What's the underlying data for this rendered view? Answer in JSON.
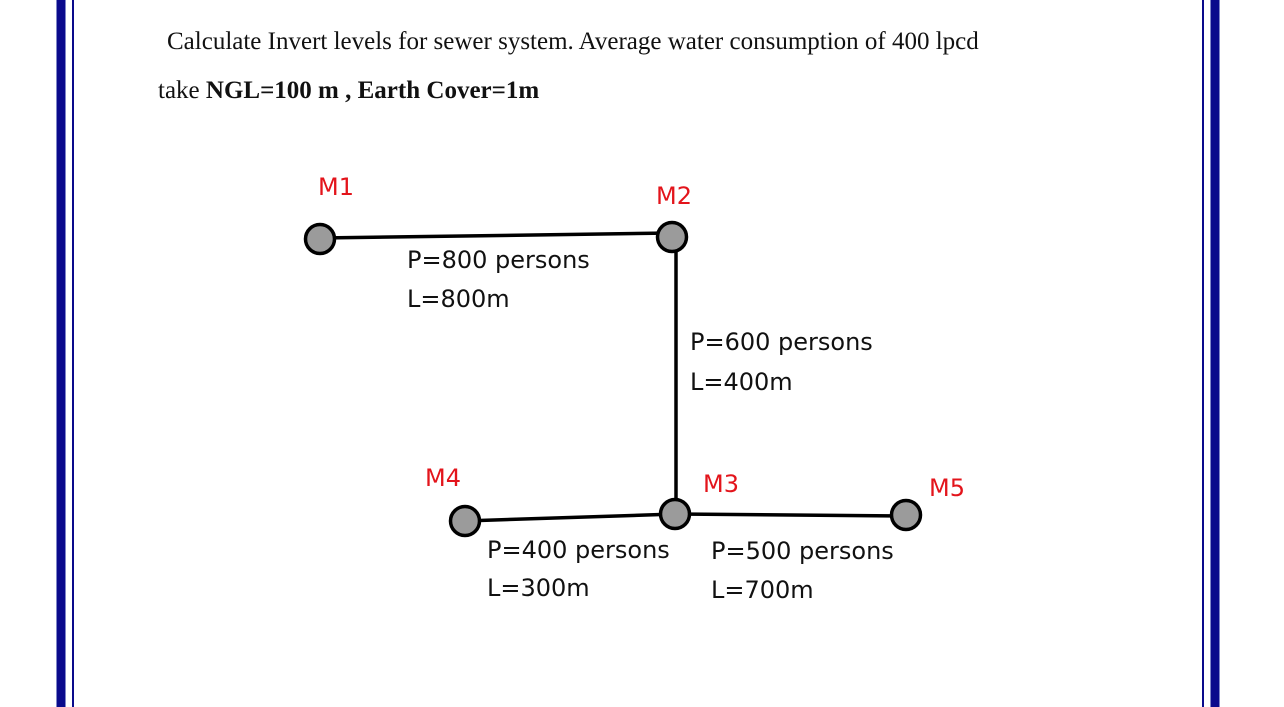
{
  "problem": {
    "line1": "Calculate Invert levels for sewer system. Average water consumption of 400 lpcd",
    "line2_prefix": "take ",
    "line2_bold": "NGL=100 m , Earth Cover=1m"
  },
  "manholes": {
    "m1": "M1",
    "m2": "M2",
    "m3": "M3",
    "m4": "M4",
    "m5": "M5"
  },
  "pipes": {
    "m1_m2": {
      "population": "P=800 persons",
      "length": "L=800m"
    },
    "m2_m3": {
      "population": "P=600 persons",
      "length": "L=400m"
    },
    "m4_m3": {
      "population": "P=400 persons",
      "length": "L=300m"
    },
    "m3_m5": {
      "population": "P=500 persons",
      "length": "L=700m"
    }
  },
  "colors": {
    "manhole_label": "#e3141b",
    "manhole_fill": "#9b9b9b",
    "page_border": "#0a0a8c"
  }
}
